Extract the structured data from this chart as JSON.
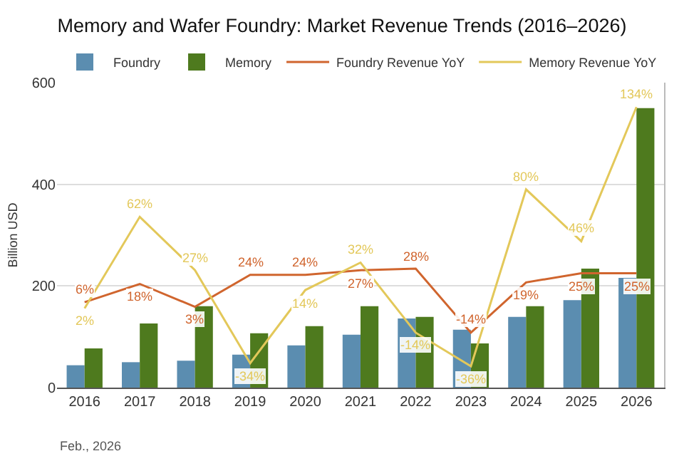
{
  "chart_data": {
    "type": "bar",
    "title": "Memory and Wafer Foundry: Market Revenue Trends (2016–2026)",
    "ylabel": "Billion USD",
    "categories": [
      "2016",
      "2017",
      "2018",
      "2019",
      "2020",
      "2021",
      "2022",
      "2023",
      "2024",
      "2025",
      "2026"
    ],
    "series": [
      {
        "name": "Foundry",
        "color": "#5b8db0",
        "values": [
          44,
          50,
          53,
          65,
          83,
          104,
          136,
          114,
          139,
          172,
          216
        ]
      },
      {
        "name": "Memory",
        "color": "#4e7a1e",
        "values": [
          77,
          126,
          160,
          107,
          121,
          160,
          139,
          87,
          160,
          234,
          550
        ]
      },
      {
        "name": "Foundry Revenue YoY",
        "type": "line",
        "axis": "y2",
        "color": "#d0652e",
        "values": [
          6,
          18,
          3,
          24,
          24,
          27,
          28,
          -14,
          19,
          25,
          25
        ],
        "value_labels": [
          "6%",
          "18%",
          "3%",
          "24%",
          "24%",
          "27%",
          "28%",
          "-14%",
          "19%",
          "25%",
          "25%"
        ]
      },
      {
        "name": "Memory Revenue YoY",
        "type": "line",
        "axis": "y2",
        "color": "#e3c85a",
        "values": [
          2,
          62,
          27,
          -34,
          14,
          32,
          -14,
          -36,
          80,
          46,
          134
        ],
        "value_labels": [
          "2%",
          "62%",
          "27%",
          "-34%",
          "14%",
          "32%",
          "-14%",
          "-36%",
          "80%",
          "46%",
          "134%"
        ]
      }
    ],
    "ylim": [
      0,
      600
    ],
    "yticks": [
      0,
      200,
      400,
      600
    ],
    "y2lim": [
      -50,
      150
    ],
    "grid": "y",
    "legend": "top",
    "annotations": [
      "Feb., 2026"
    ]
  }
}
